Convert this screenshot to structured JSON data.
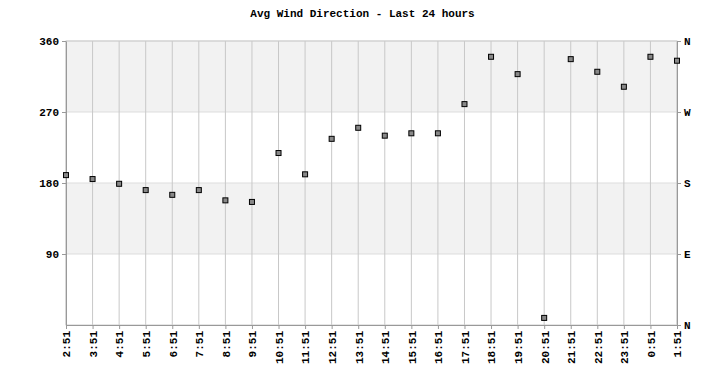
{
  "chart_data": {
    "type": "scatter",
    "title": "Avg Wind Direction - Last 24 hours",
    "categories": [
      "2:51",
      "3:51",
      "4:51",
      "5:51",
      "6:51",
      "7:51",
      "8:51",
      "9:51",
      "10:51",
      "11:51",
      "12:51",
      "13:51",
      "14:51",
      "15:51",
      "16:51",
      "17:51",
      "18:51",
      "19:51",
      "20:51",
      "21:51",
      "22:51",
      "23:51",
      "0:51",
      "1:51"
    ],
    "values": [
      190,
      185,
      179,
      171,
      165,
      171,
      158,
      156,
      218,
      191,
      236,
      250,
      240,
      243,
      243,
      280,
      340,
      318,
      9,
      337,
      321,
      302,
      340,
      335
    ],
    "color": "#888888",
    "marker": "square",
    "ylim": [
      0,
      360
    ],
    "yticks": [
      90,
      180,
      270,
      360
    ],
    "y2lim": [
      0,
      360
    ],
    "y2ticks": [
      {
        "value": 0,
        "label": "N"
      },
      {
        "value": 90,
        "label": "E"
      },
      {
        "value": 180,
        "label": "S"
      },
      {
        "value": 270,
        "label": "W"
      },
      {
        "value": 360,
        "label": "N"
      }
    ],
    "grid": true
  }
}
